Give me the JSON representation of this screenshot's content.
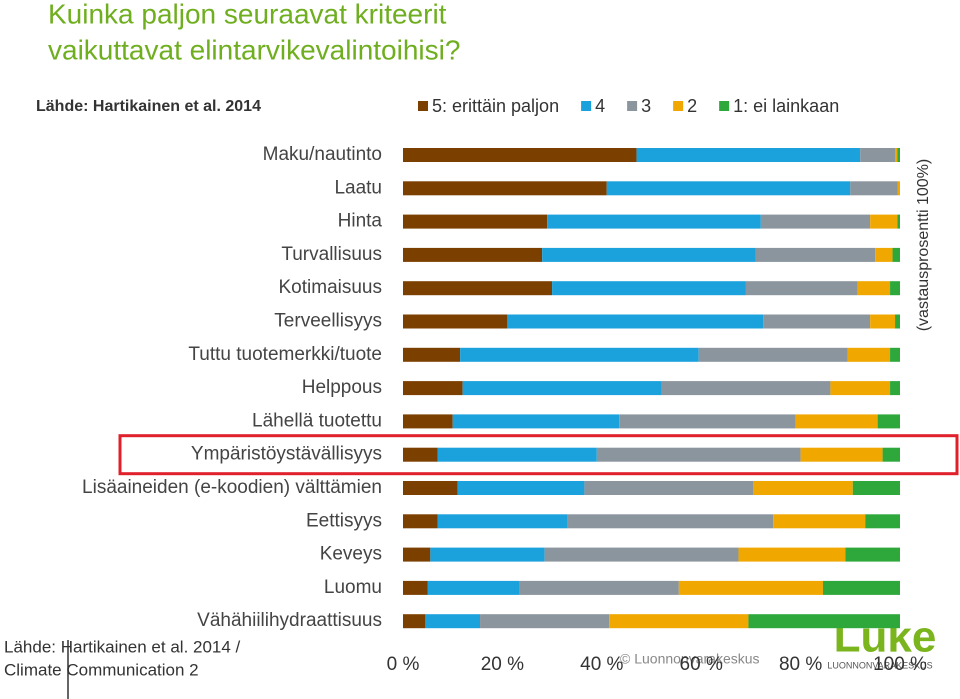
{
  "chart_data": {
    "type": "stacked-bar-horizontal",
    "title": "Kuinka paljon seuraavat kriteerit vaikuttavat elintarvikevalintoihisi?",
    "subtitle": "Lähde: Hartikainen et al. 2014",
    "axis_note": "(vastausprosentti 100%)",
    "categories": [
      "Maku/nautinto",
      "Laatu",
      "Hinta",
      "Turvallisuus",
      "Kotimaisuus",
      "Terveellisyys",
      "Tuttu tuotemerkki/tuote",
      "Helppous",
      "Lähellä tuotettu",
      "Ympäristöystävällisyys",
      "Lisäaineiden (e-koodien) välttämien",
      "Eettisyys",
      "Keveys",
      "Luomu",
      "Vähähiilihydraattisuus"
    ],
    "series": [
      {
        "name": "5: erittäin paljon",
        "color": "#7b3f00",
        "values": [
          47,
          41,
          29,
          28,
          30,
          21,
          11.5,
          12,
          10,
          7,
          11,
          7,
          5.5,
          5,
          4.5
        ]
      },
      {
        "name": "4",
        "color": "#1ba1dc",
        "values": [
          45,
          49,
          43,
          43,
          39,
          51.5,
          48,
          40,
          33.5,
          32,
          25.5,
          26,
          23,
          18.5,
          11
        ]
      },
      {
        "name": "3",
        "color": "#8b959e",
        "values": [
          7,
          9.5,
          22,
          24,
          22.5,
          21.5,
          30,
          34,
          35.5,
          41,
          34,
          41.5,
          39,
          32,
          26
        ]
      },
      {
        "name": "2",
        "color": "#f0a700",
        "values": [
          0.5,
          0.5,
          5.5,
          3.5,
          6.5,
          5,
          8.5,
          12,
          16.5,
          16.5,
          20,
          18.5,
          21.5,
          29,
          28
        ]
      },
      {
        "name": "1: ei lainkaan",
        "color": "#2ea83b",
        "values": [
          0.5,
          0,
          0.5,
          1.5,
          2,
          1,
          2,
          2,
          4.5,
          3.5,
          9.5,
          7,
          11,
          15.5,
          30.5
        ]
      }
    ],
    "xlim": [
      0,
      100
    ],
    "xticks": [
      {
        "value": 0,
        "label": "0 %"
      },
      {
        "value": 20,
        "label": "20 %"
      },
      {
        "value": 40,
        "label": "40 %"
      },
      {
        "value": 60,
        "label": "60 %"
      },
      {
        "value": 80,
        "label": "80 %"
      },
      {
        "value": 100,
        "label": "100 %"
      }
    ],
    "highlight_category": 9,
    "footer": [
      "Lähde: Hartikainen et al. 2014 /",
      "Climate Communication 2"
    ],
    "copyright": "© Luonnonvarakeskus",
    "logo": {
      "name": "Luke",
      "tagline": "LUONNONVARAKESKUS"
    }
  }
}
